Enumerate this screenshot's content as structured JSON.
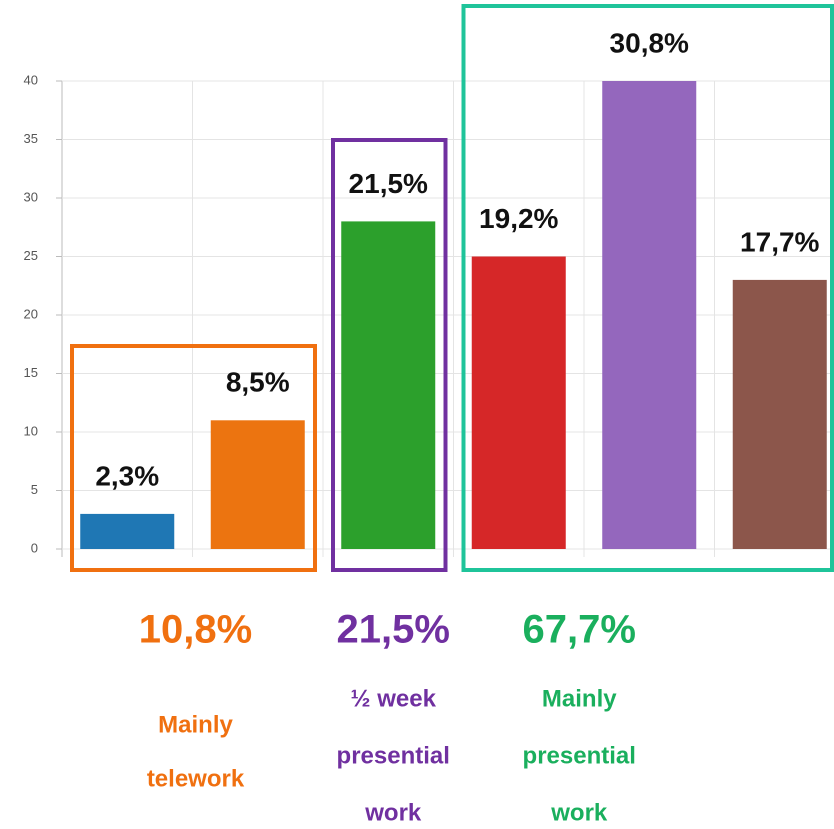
{
  "chart_data": {
    "type": "bar",
    "categories": [
      null,
      null,
      null,
      null,
      null,
      null
    ],
    "values": [
      3,
      11,
      28,
      25,
      40,
      23
    ],
    "colors": [
      "#1f77b4",
      "#ec7410",
      "#2ca02c",
      "#d62728",
      "#9467bd",
      "#8c564b"
    ],
    "annotations": [
      "2,3%",
      "8,5%",
      "21,5%",
      "19,2%",
      "30,8%",
      "17,7%"
    ],
    "ylim": [
      0,
      40
    ],
    "yticks": [
      0,
      5,
      10,
      15,
      20,
      25,
      30,
      35,
      40
    ],
    "grid": true,
    "groups": [
      {
        "total": "10,8%",
        "lines": [
          "Mainly",
          "telework"
        ],
        "color": "#f07010"
      },
      {
        "total": "21,5%",
        "lines": [
          "½ week",
          "presential",
          "work"
        ],
        "color": "#7030a0"
      },
      {
        "total": "67,7%",
        "lines": [
          "Mainly",
          "presential",
          "work"
        ],
        "color": "#1aaf5d"
      }
    ]
  }
}
